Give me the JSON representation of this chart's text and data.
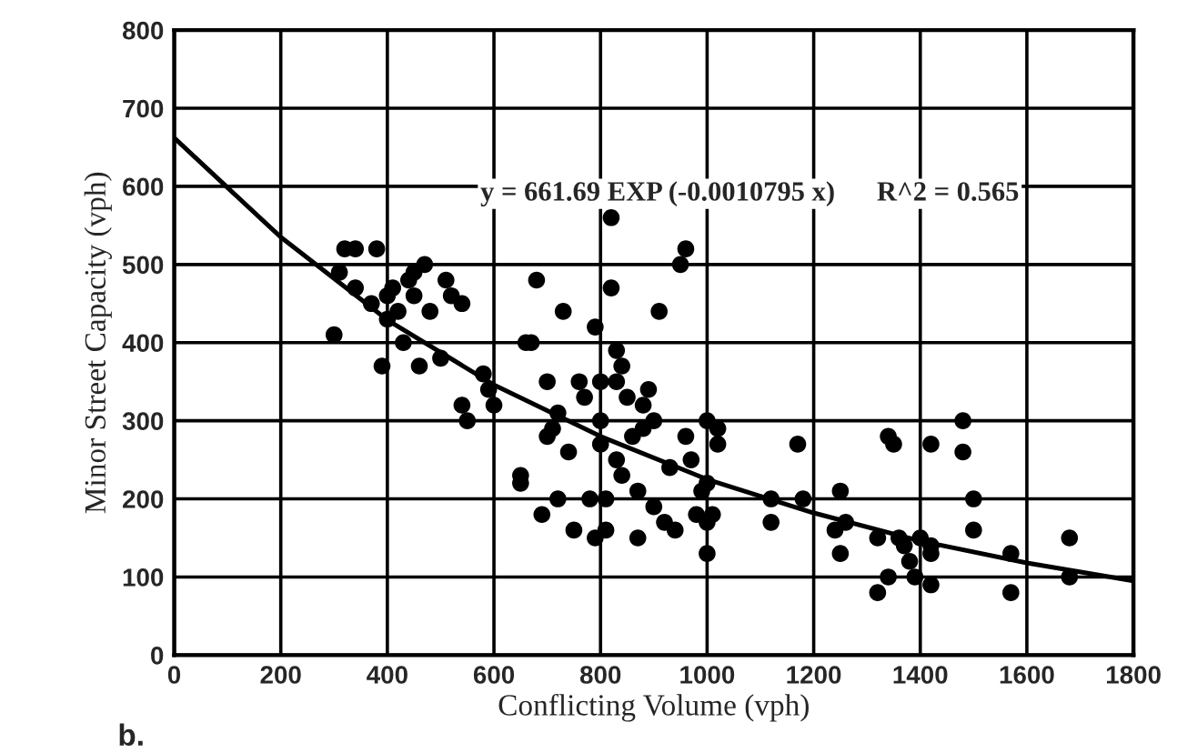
{
  "chart_data": {
    "type": "scatter",
    "xlabel": "Conflicting Volume (vph)",
    "ylabel": "Minor Street Capacity (vph)",
    "xlim": [
      0,
      1800
    ],
    "xticks": [
      0,
      200,
      400,
      600,
      800,
      1000,
      1200,
      1400,
      1600,
      1800
    ],
    "ylim": [
      0,
      800
    ],
    "yticks": [
      0,
      100,
      200,
      300,
      400,
      500,
      600,
      700,
      800
    ],
    "grid": true,
    "marker": "circle",
    "annotations": [
      "y = 661.69 EXP (-0.0010795 x)      R^2 = 0.565",
      "b."
    ],
    "series": [
      {
        "color": "#000000",
        "x": [
          300,
          310,
          320,
          340,
          340,
          370,
          380,
          390,
          400,
          400,
          410,
          420,
          430,
          440,
          450,
          450,
          460,
          470,
          480,
          500,
          510,
          520,
          540,
          540,
          550,
          580,
          590,
          600,
          650,
          650,
          660,
          670,
          680,
          690,
          700,
          700,
          710,
          720,
          720,
          730,
          740,
          750,
          760,
          770,
          780,
          790,
          790,
          800,
          800,
          800,
          810,
          810,
          820,
          820,
          830,
          830,
          830,
          840,
          840,
          850,
          860,
          870,
          870,
          880,
          880,
          890,
          900,
          900,
          910,
          920,
          930,
          940,
          950,
          960,
          960,
          970,
          980,
          990,
          1000,
          1000,
          1000,
          1000,
          1010,
          1020,
          1020,
          1120,
          1120,
          1170,
          1180,
          1240,
          1250,
          1250,
          1260,
          1320,
          1320,
          1340,
          1340,
          1350,
          1360,
          1370,
          1380,
          1390,
          1400,
          1420,
          1420,
          1420,
          1420,
          1480,
          1480,
          1500,
          1500,
          1570,
          1570,
          1680,
          1680
        ],
        "values": [
          410,
          490,
          520,
          520,
          470,
          450,
          520,
          370,
          430,
          460,
          470,
          440,
          400,
          480,
          490,
          460,
          370,
          500,
          440,
          380,
          480,
          460,
          450,
          320,
          300,
          360,
          340,
          320,
          230,
          220,
          400,
          400,
          480,
          180,
          350,
          280,
          290,
          310,
          200,
          440,
          260,
          160,
          350,
          330,
          200,
          420,
          150,
          350,
          300,
          270,
          200,
          160,
          560,
          470,
          390,
          350,
          250,
          370,
          230,
          330,
          280,
          210,
          150,
          320,
          290,
          340,
          300,
          190,
          440,
          170,
          240,
          160,
          500,
          520,
          280,
          250,
          180,
          210,
          300,
          220,
          170,
          130,
          180,
          270,
          290,
          200,
          170,
          270,
          200,
          160,
          130,
          210,
          170,
          150,
          80,
          280,
          100,
          270,
          150,
          140,
          120,
          100,
          150,
          140,
          130,
          270,
          90,
          300,
          260,
          160,
          200,
          130,
          80,
          150,
          100
        ]
      },
      {
        "type": "line",
        "color": "#000000",
        "marker": "none",
        "line_style": "solid",
        "x": [
          0,
          200,
          400,
          600,
          800,
          1000,
          1200,
          1400,
          1600,
          1800
        ],
        "values": [
          662,
          535,
          429,
          346,
          280,
          225,
          182,
          146,
          118,
          95
        ]
      }
    ]
  }
}
